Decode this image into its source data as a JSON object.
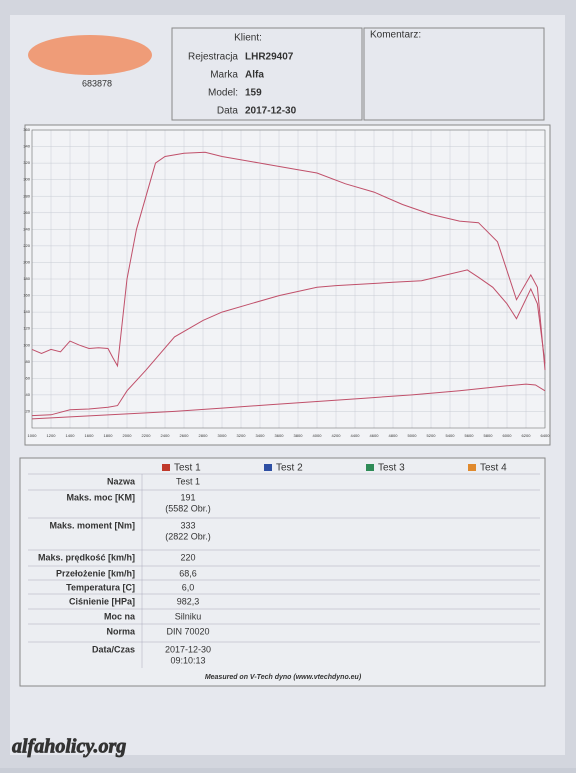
{
  "header": {
    "client_number": "683878",
    "client_label": "Klient:",
    "fields": [
      {
        "label": "Rejestracja",
        "value": "LHR29407"
      },
      {
        "label": "Marka",
        "value": "Alfa"
      },
      {
        "label": "Model:",
        "value": "159"
      },
      {
        "label": "Data",
        "value": "2017-12-30"
      }
    ],
    "comment_label": "Komentarz:"
  },
  "chart_data": {
    "type": "line",
    "xlim": [
      1000,
      6400
    ],
    "xticks": [
      1000,
      1200,
      1400,
      1600,
      1800,
      2000,
      2200,
      2400,
      2600,
      2800,
      3000,
      3200,
      3400,
      3600,
      3800,
      4000,
      4200,
      4400,
      4600,
      4800,
      5000,
      5200,
      5400,
      5600,
      5800,
      6000,
      6200,
      6400
    ],
    "ylim": [
      0,
      360
    ],
    "yticks": [
      20,
      40,
      60,
      80,
      100,
      120,
      140,
      160,
      180,
      200,
      220,
      240,
      260,
      280,
      300,
      320,
      340,
      360
    ],
    "grid": true,
    "series": [
      {
        "color": "#c0506a",
        "x": [
          1000,
          1100,
          1200,
          1300,
          1400,
          1500,
          1600,
          1700,
          1800,
          1850,
          1900,
          2000,
          2100,
          2200,
          2300,
          2400,
          2600,
          2822,
          3000,
          3400,
          3800,
          4000,
          4300,
          4600,
          4900,
          5200,
          5500,
          5700,
          5900,
          6000,
          6100,
          6250,
          6320,
          6400
        ],
        "values": [
          95,
          90,
          95,
          92,
          105,
          100,
          96,
          97,
          96,
          85,
          75,
          180,
          240,
          280,
          320,
          328,
          332,
          333,
          328,
          320,
          312,
          308,
          295,
          285,
          270,
          258,
          250,
          248,
          225,
          190,
          155,
          185,
          170,
          70
        ]
      },
      {
        "color": "#c0506a",
        "x": [
          1000,
          1200,
          1400,
          1600,
          1800,
          1900,
          2000,
          2200,
          2500,
          2800,
          3000,
          3300,
          3600,
          4000,
          4200,
          4500,
          4800,
          5100,
          5400,
          5582,
          5700,
          5850,
          6000,
          6100,
          6250,
          6320,
          6400
        ],
        "values": [
          15,
          16,
          22,
          23,
          25,
          27,
          45,
          70,
          110,
          130,
          140,
          150,
          160,
          170,
          172,
          174,
          176,
          178,
          186,
          191,
          182,
          170,
          150,
          132,
          168,
          150,
          78
        ]
      },
      {
        "color": "#c0506a",
        "x": [
          1000,
          1500,
          2000,
          2500,
          3000,
          3500,
          4000,
          4500,
          5000,
          5500,
          6000,
          6200,
          6300,
          6400
        ],
        "values": [
          11,
          14,
          17,
          20,
          24,
          28,
          32,
          36,
          40,
          45,
          51,
          53,
          52,
          45
        ]
      }
    ]
  },
  "table": {
    "legend": [
      {
        "name": "Test 1",
        "color": "#c0392b"
      },
      {
        "name": "Test 2",
        "color": "#2e4fa3"
      },
      {
        "name": "Test 3",
        "color": "#2e8b57"
      },
      {
        "name": "Test 4",
        "color": "#e08a2e"
      }
    ],
    "rows": [
      {
        "label": "Nazwa",
        "value": [
          "Test 1"
        ]
      },
      {
        "label": "Maks. moc [KM]",
        "value": [
          "191",
          "(5582 Obr.)"
        ]
      },
      {
        "label": "Maks. moment [Nm]",
        "value": [
          "333",
          "(2822 Obr.)"
        ]
      },
      {
        "label": "Maks. prędkość [km/h]",
        "value": [
          "220"
        ]
      },
      {
        "label": "Przełożenie [km/h]",
        "value": [
          "68,6"
        ]
      },
      {
        "label": "Temperatura [C]",
        "value": [
          "6,0"
        ]
      },
      {
        "label": "Ciśnienie [HPa]",
        "value": [
          "982,3"
        ]
      },
      {
        "label": "Moc na",
        "value": [
          "Silniku"
        ]
      },
      {
        "label": "Norma",
        "value": [
          "DIN 70020"
        ]
      },
      {
        "label": "Data/Czas",
        "value": [
          "2017-12-30",
          "09:10:13"
        ]
      }
    ],
    "footer": "Measured on V-Tech dyno (www.vtechdyno.eu)"
  },
  "watermark": "alfaholicy.org"
}
